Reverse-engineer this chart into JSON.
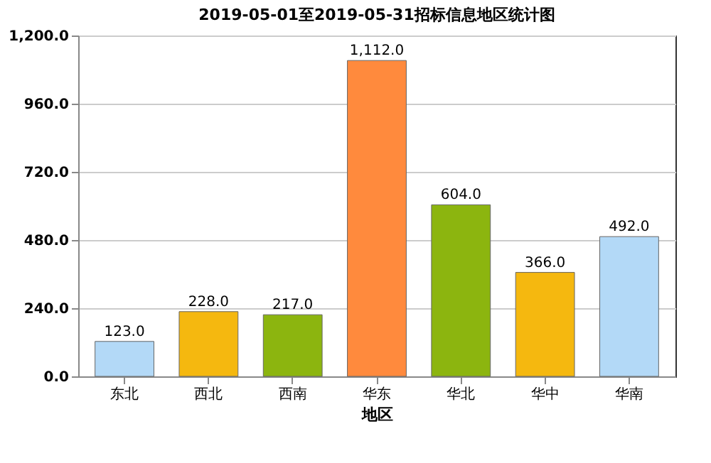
{
  "chart_data": {
    "type": "bar",
    "title": "2019-05-01至2019-05-31招标信息地区统计图",
    "xlabel": "地区",
    "categories": [
      "东北",
      "西北",
      "西南",
      "华东",
      "华北",
      "华中",
      "华南"
    ],
    "values": [
      123,
      228,
      217,
      1112,
      604,
      366,
      492
    ],
    "value_labels": [
      "123.0",
      "228.0",
      "217.0",
      "1,112.0",
      "604.0",
      "366.0",
      "492.0"
    ],
    "colors": [
      "#b3d9f7",
      "#f5b80f",
      "#8cb50f",
      "#ff8a3d",
      "#8cb50f",
      "#f5b80f",
      "#b3d9f7"
    ],
    "ylim": [
      0,
      1200
    ],
    "yticks": [
      {
        "value": 0,
        "label": "0.0"
      },
      {
        "value": 240,
        "label": "240.0"
      },
      {
        "value": 480,
        "label": "480.0"
      },
      {
        "value": 720,
        "label": "720.0"
      },
      {
        "value": 960,
        "label": "960.0"
      },
      {
        "value": 1200,
        "label": "1,200.0"
      }
    ],
    "grid": "y"
  }
}
